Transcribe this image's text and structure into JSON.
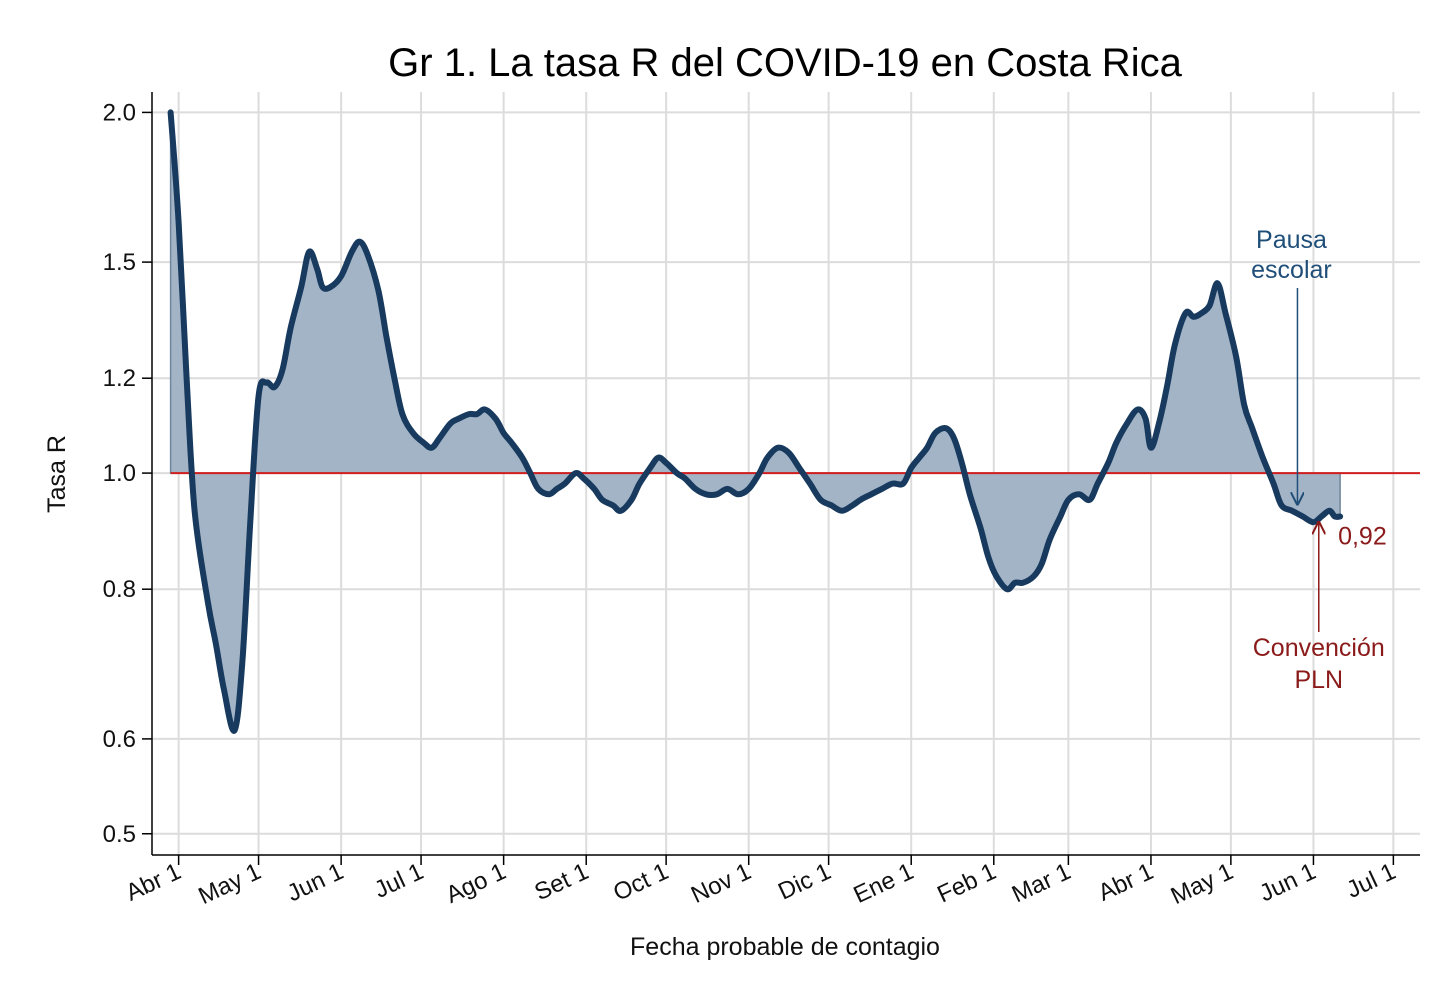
{
  "colors": {
    "title": "#1f4e79",
    "line": "#173a5e",
    "fill": "#a3b4c6",
    "reference_line": "#d11f1f",
    "annotation_blue": "#1f4e79",
    "annotation_red": "#8b1a1a",
    "grid": "#dcdcdc"
  },
  "chart_data": {
    "type": "area",
    "title": "Gr 1. La tasa R del COVID-19 en Costa Rica",
    "xlabel": "Fecha probable de contagio",
    "ylabel": "Tasa R",
    "y_scale": "log",
    "ylim": [
      0.48,
      2.08
    ],
    "y_ticks": [
      2.0,
      1.5,
      1.2,
      1.0,
      0.8,
      0.6,
      0.5
    ],
    "y_tick_labels": [
      "2.0",
      "1.5",
      "1.2",
      "1.0",
      "0.8",
      "0.6",
      "0.5"
    ],
    "xlim": [
      "2020-03-22",
      "2021-07-11"
    ],
    "x_ticks": [
      "2020-04-01",
      "2020-05-01",
      "2020-06-01",
      "2020-07-01",
      "2020-08-01",
      "2020-09-01",
      "2020-10-01",
      "2020-11-01",
      "2020-12-01",
      "2021-01-01",
      "2021-02-01",
      "2021-03-01",
      "2021-04-01",
      "2021-05-01",
      "2021-06-01",
      "2021-07-01"
    ],
    "x_tick_labels": [
      "Abr 1",
      "May 1",
      "Jun 1",
      "Jul 1",
      "Ago 1",
      "Set 1",
      "Oct 1",
      "Nov 1",
      "Dic 1",
      "Ene 1",
      "Feb 1",
      "Mar 1",
      "Abr 1",
      "May 1",
      "Jun 1",
      "Jul 1"
    ],
    "reference_line": 1.0,
    "grid": true,
    "series": [
      {
        "x": [
          "2020-03-29",
          "2020-04-01",
          "2020-04-04",
          "2020-04-07",
          "2020-04-12",
          "2020-04-15",
          "2020-04-18",
          "2020-04-22",
          "2020-04-25",
          "2020-04-28",
          "2020-05-01",
          "2020-05-04",
          "2020-05-07",
          "2020-05-10",
          "2020-05-13",
          "2020-05-17",
          "2020-05-20",
          "2020-05-23",
          "2020-05-25",
          "2020-05-28",
          "2020-06-01",
          "2020-06-05",
          "2020-06-08",
          "2020-06-11",
          "2020-06-15",
          "2020-06-18",
          "2020-06-21",
          "2020-06-24",
          "2020-06-28",
          "2020-07-02",
          "2020-07-05",
          "2020-07-08",
          "2020-07-12",
          "2020-07-15",
          "2020-07-19",
          "2020-07-22",
          "2020-07-25",
          "2020-07-29",
          "2020-08-01",
          "2020-08-04",
          "2020-08-08",
          "2020-08-11",
          "2020-08-14",
          "2020-08-18",
          "2020-08-21",
          "2020-08-24",
          "2020-08-28",
          "2020-08-31",
          "2020-09-04",
          "2020-09-07",
          "2020-09-11",
          "2020-09-14",
          "2020-09-18",
          "2020-09-21",
          "2020-09-25",
          "2020-09-28",
          "2020-10-01",
          "2020-10-05",
          "2020-10-08",
          "2020-10-12",
          "2020-10-16",
          "2020-10-20",
          "2020-10-24",
          "2020-10-28",
          "2020-11-01",
          "2020-11-05",
          "2020-11-08",
          "2020-11-12",
          "2020-11-16",
          "2020-11-20",
          "2020-11-24",
          "2020-11-28",
          "2020-12-02",
          "2020-12-06",
          "2020-12-10",
          "2020-12-13",
          "2020-12-17",
          "2020-12-21",
          "2020-12-25",
          "2020-12-29",
          "2021-01-01",
          "2021-01-04",
          "2021-01-07",
          "2021-01-10",
          "2021-01-14",
          "2021-01-17",
          "2021-01-20",
          "2021-01-23",
          "2021-01-27",
          "2021-01-30",
          "2021-02-02",
          "2021-02-06",
          "2021-02-09",
          "2021-02-12",
          "2021-02-16",
          "2021-02-19",
          "2021-02-22",
          "2021-02-26",
          "2021-03-01",
          "2021-03-05",
          "2021-03-09",
          "2021-03-12",
          "2021-03-16",
          "2021-03-19",
          "2021-03-23",
          "2021-03-27",
          "2021-03-30",
          "2021-04-01",
          "2021-04-04",
          "2021-04-07",
          "2021-04-10",
          "2021-04-14",
          "2021-04-17",
          "2021-04-20",
          "2021-04-23",
          "2021-04-26",
          "2021-04-29",
          "2021-05-03",
          "2021-05-06",
          "2021-05-09",
          "2021-05-13",
          "2021-05-17",
          "2021-05-20",
          "2021-05-24",
          "2021-05-28",
          "2021-06-01",
          "2021-06-04",
          "2021-06-07",
          "2021-06-09",
          "2021-06-11"
        ],
        "values": [
          2.0,
          1.62,
          1.2,
          0.93,
          0.78,
          0.72,
          0.66,
          0.61,
          0.7,
          0.92,
          1.16,
          1.19,
          1.18,
          1.22,
          1.32,
          1.43,
          1.53,
          1.48,
          1.43,
          1.43,
          1.46,
          1.53,
          1.56,
          1.52,
          1.42,
          1.3,
          1.2,
          1.12,
          1.08,
          1.06,
          1.05,
          1.07,
          1.1,
          1.11,
          1.12,
          1.12,
          1.13,
          1.11,
          1.08,
          1.06,
          1.03,
          1.0,
          0.97,
          0.96,
          0.97,
          0.98,
          1.0,
          0.99,
          0.97,
          0.95,
          0.94,
          0.93,
          0.95,
          0.98,
          1.01,
          1.03,
          1.02,
          1.0,
          0.99,
          0.97,
          0.96,
          0.96,
          0.97,
          0.96,
          0.97,
          1.0,
          1.03,
          1.05,
          1.04,
          1.01,
          0.98,
          0.95,
          0.94,
          0.93,
          0.94,
          0.95,
          0.96,
          0.97,
          0.98,
          0.98,
          1.01,
          1.03,
          1.05,
          1.08,
          1.09,
          1.07,
          1.02,
          0.96,
          0.9,
          0.85,
          0.82,
          0.8,
          0.81,
          0.81,
          0.82,
          0.84,
          0.88,
          0.92,
          0.95,
          0.96,
          0.95,
          0.98,
          1.02,
          1.06,
          1.1,
          1.13,
          1.11,
          1.05,
          1.1,
          1.18,
          1.28,
          1.36,
          1.35,
          1.36,
          1.38,
          1.44,
          1.36,
          1.25,
          1.14,
          1.09,
          1.03,
          0.98,
          0.94,
          0.93,
          0.92,
          0.91,
          0.92,
          0.93,
          0.92,
          0.92
        ]
      }
    ],
    "annotations": [
      {
        "lines": [
          "Pausa",
          "escolar"
        ],
        "x": "2021-05-26",
        "y_arrow_tip": 0.935,
        "color": "annotation_blue"
      },
      {
        "lines": [
          "Convención",
          "PLN"
        ],
        "x": "2021-06-03",
        "y_arrow_tip": 0.92,
        "color": "annotation_red"
      },
      {
        "text": "0,92",
        "x": "2021-06-11",
        "y": 0.92,
        "color": "annotation_red"
      }
    ]
  }
}
